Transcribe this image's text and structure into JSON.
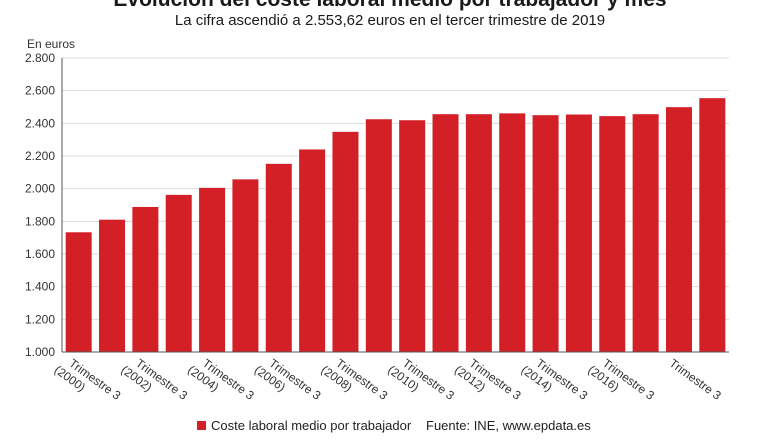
{
  "chart_data": {
    "type": "bar",
    "title": "Evolución del coste laboral medio por trabajador y mes",
    "subtitle": "La cifra ascendió a 2.553,62 euros en el tercer trimestre de 2019",
    "ylabel": "En euros",
    "ylim": [
      1000,
      2800
    ],
    "yticks": [
      "1.000",
      "1.200",
      "1.400",
      "1.600",
      "1.800",
      "2.000",
      "2.200",
      "2.400",
      "2.600",
      "2.800"
    ],
    "ytick_values": [
      1000,
      1200,
      1400,
      1600,
      1800,
      2000,
      2200,
      2400,
      2600,
      2800
    ],
    "x_tick_labels": [
      {
        "line1": "Trimestre 3",
        "line2": "(2000)"
      },
      {
        "line1": "Trimestre 3",
        "line2": "(2002)"
      },
      {
        "line1": "Trimestre 3",
        "line2": "(2004)"
      },
      {
        "line1": "Trimestre 3",
        "line2": "(2006)"
      },
      {
        "line1": "Trimestre 3",
        "line2": "(2008)"
      },
      {
        "line1": "Trimestre 3",
        "line2": "(2010)"
      },
      {
        "line1": "Trimestre 3",
        "line2": "(2012)"
      },
      {
        "line1": "Trimestre 3",
        "line2": "(2014)"
      },
      {
        "line1": "Trimestre 3",
        "line2": "(2016)"
      },
      {
        "line1": "Trimestre 3",
        "line2": ""
      }
    ],
    "series": [
      {
        "name": "Coste laboral medio por trabajador",
        "color": "#d32027",
        "values": [
          1733,
          1810,
          1888,
          1962,
          2005,
          2057,
          2152,
          2240,
          2348,
          2425,
          2419,
          2456,
          2456,
          2461,
          2450,
          2454,
          2444,
          2456,
          2499,
          2554
        ]
      }
    ],
    "grid": true,
    "legend_position": "bottom",
    "source": "Fuente: INE, www.epdata.es"
  }
}
